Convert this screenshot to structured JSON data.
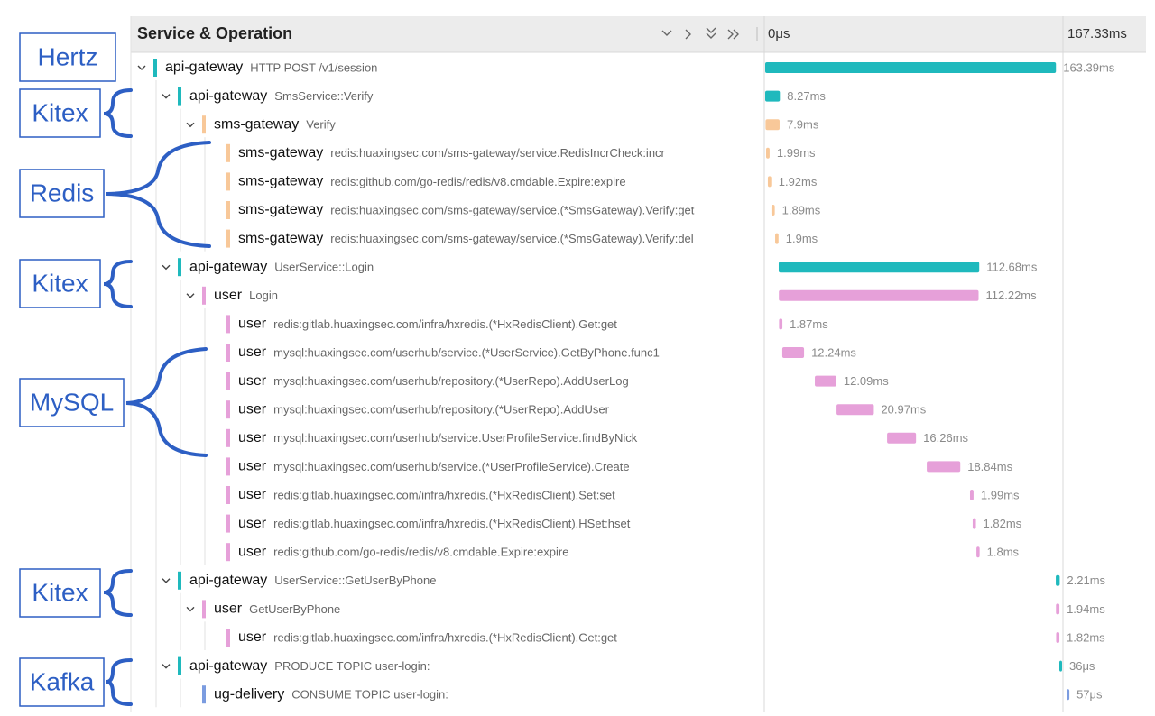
{
  "header": {
    "column_title": "Service & Operation",
    "timeline_ticks": [
      {
        "value": 0,
        "label": "0μs"
      },
      {
        "value": 167.33,
        "label": "167.33ms"
      }
    ]
  },
  "annotations": [
    "Hertz",
    "Kitex",
    "Redis",
    "Kitex",
    "MySQL",
    "Kitex",
    "Kafka"
  ],
  "spans": [
    {
      "service": "api-gateway",
      "operation": "HTTP POST /v1/session",
      "depth": 0,
      "color": "#1fb9bd",
      "start": 0,
      "duration": 163.39,
      "duration_label": "163.39ms"
    },
    {
      "service": "api-gateway",
      "operation": "SmsService::Verify",
      "depth": 1,
      "color": "#1fb9bd",
      "start": 0,
      "duration": 8.27,
      "duration_label": "8.27ms"
    },
    {
      "service": "sms-gateway",
      "operation": "Verify",
      "depth": 2,
      "color": "#f8c899",
      "start": 0.2,
      "duration": 7.9,
      "duration_label": "7.9ms"
    },
    {
      "service": "sms-gateway",
      "operation": "redis:huaxingsec.com/sms-gateway/service.RedisIncrCheck:incr",
      "depth": 3,
      "color": "#f8c899",
      "start": 0.5,
      "duration": 1.99,
      "duration_label": "1.99ms"
    },
    {
      "service": "sms-gateway",
      "operation": "redis:github.com/go-redis/redis/v8.cmdable.Expire:expire",
      "depth": 3,
      "color": "#f8c899",
      "start": 1.5,
      "duration": 1.92,
      "duration_label": "1.92ms"
    },
    {
      "service": "sms-gateway",
      "operation": "redis:huaxingsec.com/sms-gateway/service.(*SmsGateway).Verify:get",
      "depth": 3,
      "color": "#f8c899",
      "start": 3.5,
      "duration": 1.89,
      "duration_label": "1.89ms"
    },
    {
      "service": "sms-gateway",
      "operation": "redis:huaxingsec.com/sms-gateway/service.(*SmsGateway).Verify:del",
      "depth": 3,
      "color": "#f8c899",
      "start": 5.6,
      "duration": 1.9,
      "duration_label": "1.9ms"
    },
    {
      "service": "api-gateway",
      "operation": "UserService::Login",
      "depth": 1,
      "color": "#1fb9bd",
      "start": 7.6,
      "duration": 112.68,
      "duration_label": "112.68ms"
    },
    {
      "service": "user",
      "operation": "Login",
      "depth": 2,
      "color": "#e6a0d9",
      "start": 7.7,
      "duration": 112.22,
      "duration_label": "112.22ms"
    },
    {
      "service": "user",
      "operation": "redis:gitlab.huaxingsec.com/infra/hxredis.(*HxRedisClient).Get:get",
      "depth": 3,
      "color": "#e6a0d9",
      "start": 7.8,
      "duration": 1.87,
      "duration_label": "1.87ms"
    },
    {
      "service": "user",
      "operation": "mysql:huaxingsec.com/userhub/service.(*UserService).GetByPhone.func1",
      "depth": 3,
      "color": "#e6a0d9",
      "start": 9.6,
      "duration": 12.24,
      "duration_label": "12.24ms"
    },
    {
      "service": "user",
      "operation": "mysql:huaxingsec.com/userhub/repository.(*UserRepo).AddUserLog",
      "depth": 3,
      "color": "#e6a0d9",
      "start": 27.9,
      "duration": 12.09,
      "duration_label": "12.09ms"
    },
    {
      "service": "user",
      "operation": "mysql:huaxingsec.com/userhub/repository.(*UserRepo).AddUser",
      "depth": 3,
      "color": "#e6a0d9",
      "start": 40.1,
      "duration": 20.97,
      "duration_label": "20.97ms"
    },
    {
      "service": "user",
      "operation": "mysql:huaxingsec.com/userhub/service.UserProfileService.findByNick",
      "depth": 3,
      "color": "#e6a0d9",
      "start": 68.5,
      "duration": 16.26,
      "duration_label": "16.26ms"
    },
    {
      "service": "user",
      "operation": "mysql:huaxingsec.com/userhub/service.(*UserProfileService).Create",
      "depth": 3,
      "color": "#e6a0d9",
      "start": 90.8,
      "duration": 18.84,
      "duration_label": "18.84ms"
    },
    {
      "service": "user",
      "operation": "redis:gitlab.huaxingsec.com/infra/hxredis.(*HxRedisClient).Set:set",
      "depth": 3,
      "color": "#e6a0d9",
      "start": 115.1,
      "duration": 1.99,
      "duration_label": "1.99ms"
    },
    {
      "service": "user",
      "operation": "redis:gitlab.huaxingsec.com/infra/hxredis.(*HxRedisClient).HSet:hset",
      "depth": 3,
      "color": "#e6a0d9",
      "start": 116.6,
      "duration": 1.82,
      "duration_label": "1.82ms"
    },
    {
      "service": "user",
      "operation": "redis:github.com/go-redis/redis/v8.cmdable.Expire:expire",
      "depth": 3,
      "color": "#e6a0d9",
      "start": 118.7,
      "duration": 1.8,
      "duration_label": "1.8ms"
    },
    {
      "service": "api-gateway",
      "operation": "UserService::GetUserByPhone",
      "depth": 1,
      "color": "#1fb9bd",
      "start": 163.3,
      "duration": 2.21,
      "duration_label": "2.21ms"
    },
    {
      "service": "user",
      "operation": "GetUserByPhone",
      "depth": 2,
      "color": "#e6a0d9",
      "start": 163.4,
      "duration": 1.94,
      "duration_label": "1.94ms"
    },
    {
      "service": "user",
      "operation": "redis:gitlab.huaxingsec.com/infra/hxredis.(*HxRedisClient).Get:get",
      "depth": 3,
      "color": "#e6a0d9",
      "start": 163.5,
      "duration": 1.82,
      "duration_label": "1.82ms"
    },
    {
      "service": "api-gateway",
      "operation": "PRODUCE TOPIC user-login:",
      "depth": 1,
      "color": "#1fb9bd",
      "start": 165.3,
      "duration": 0.036,
      "duration_label": "36μs"
    },
    {
      "service": "ug-delivery",
      "operation": "CONSUME TOPIC user-login:",
      "depth": 2,
      "color": "#7b9ce0",
      "start": 169.4,
      "duration": 0.057,
      "duration_label": "57μs"
    }
  ]
}
